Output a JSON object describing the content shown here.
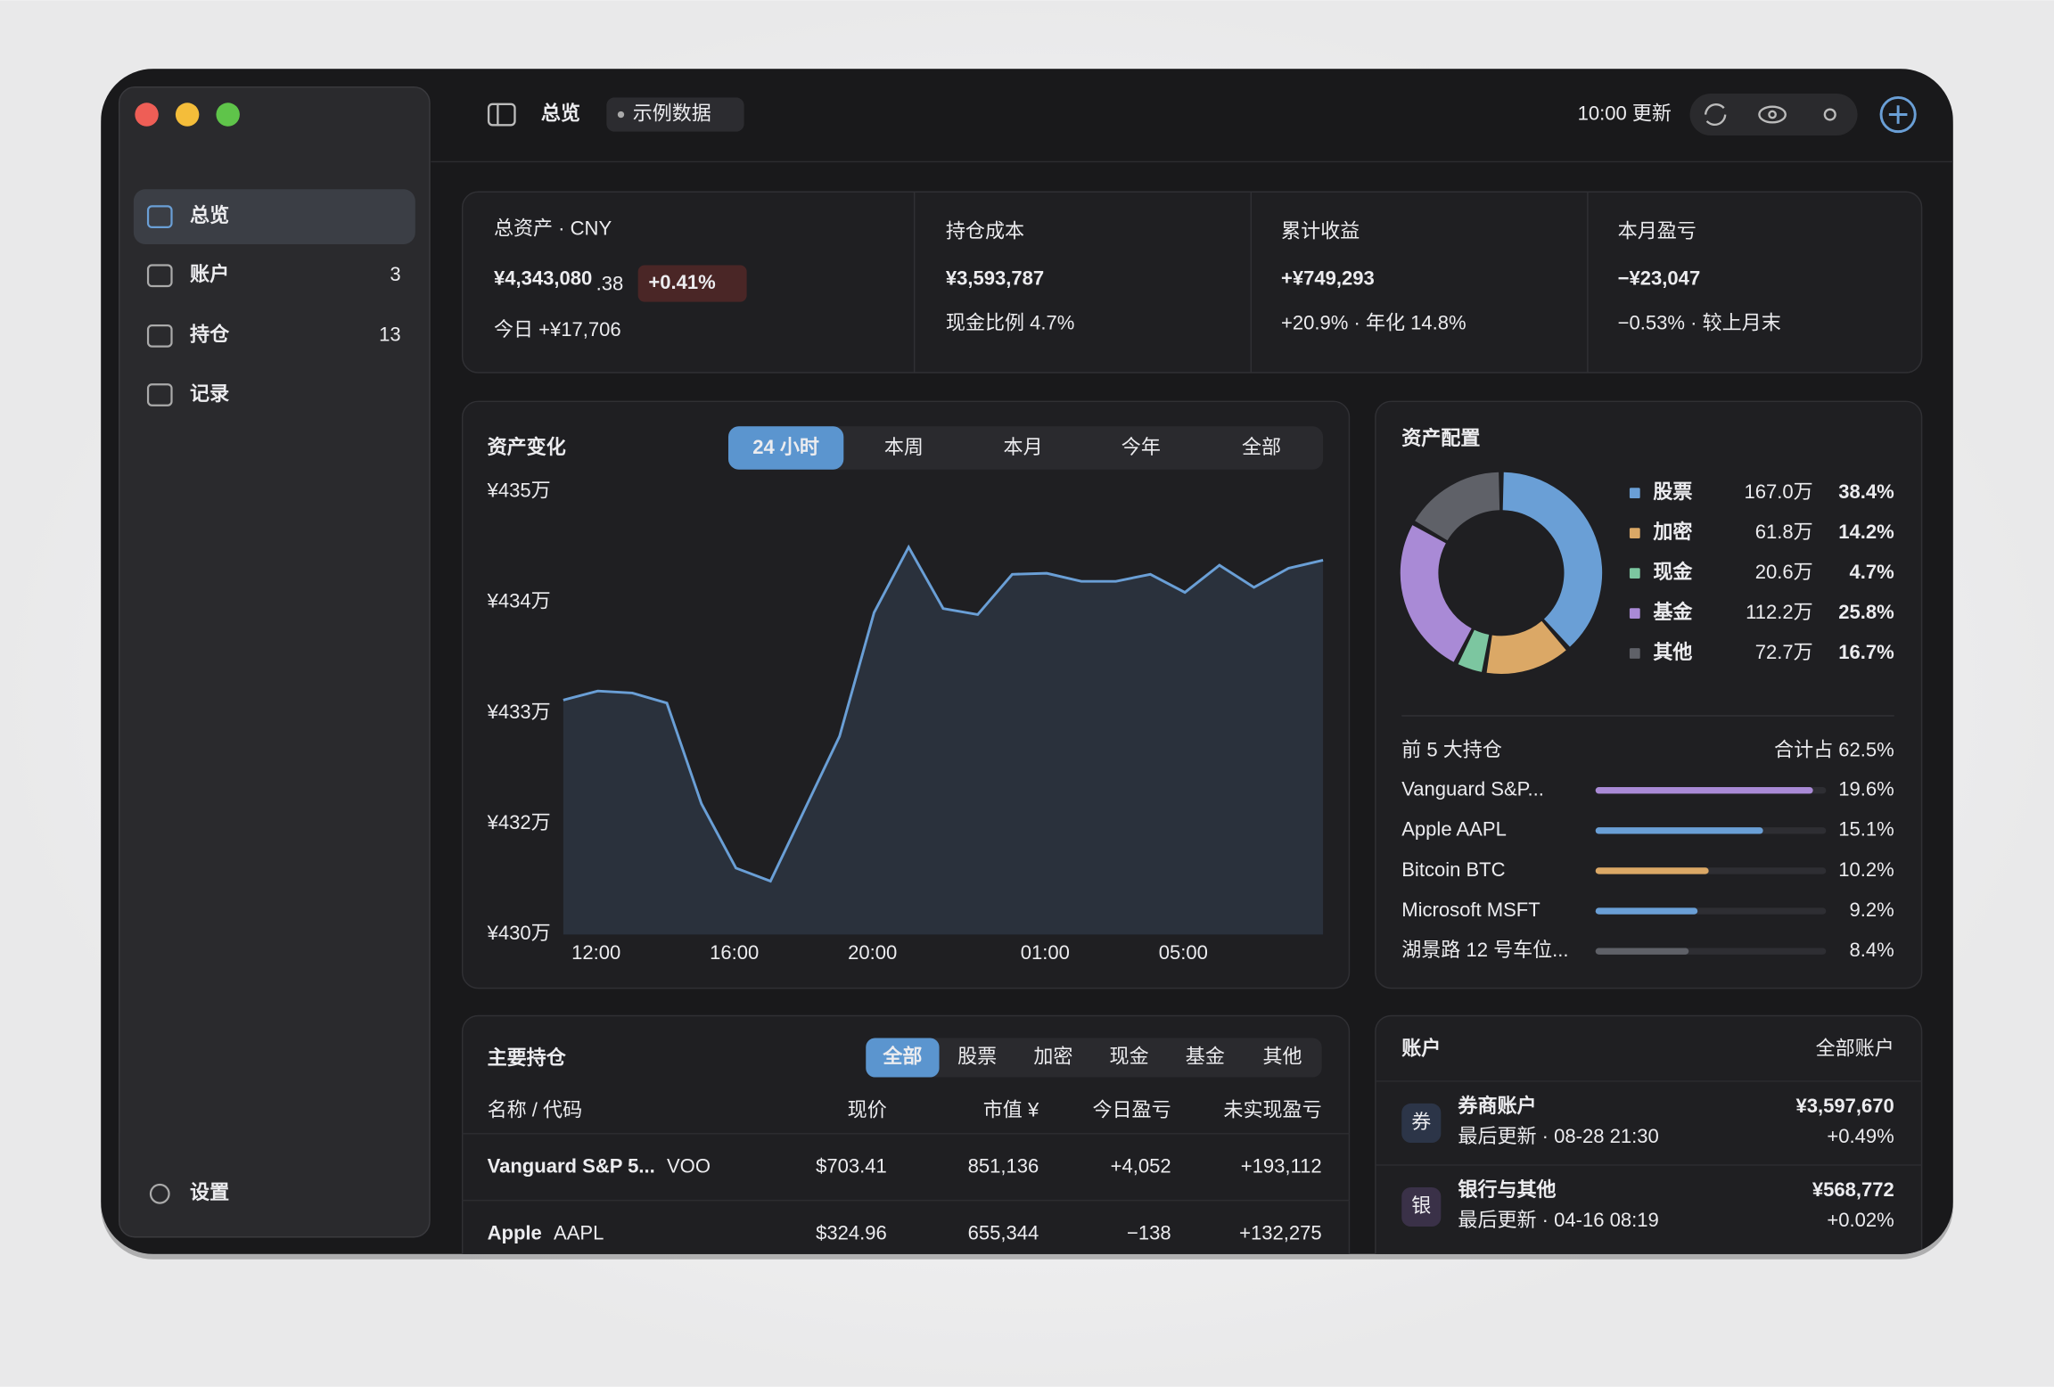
{
  "sidebar": {
    "nav": [
      {
        "label": "总览"
      },
      {
        "label": "账户",
        "count": 3
      },
      {
        "label": "持仓",
        "count": 13
      },
      {
        "label": "记录"
      }
    ],
    "settings": "设置"
  },
  "header": {
    "title": "总览",
    "badge": "示例数据",
    "updated": "10:00 更新"
  },
  "stats": [
    {
      "label": "总资产 · CNY",
      "value": "¥4,343,080",
      "decimals": ".38",
      "change": "+0.41%",
      "sub": "今日 +¥17,706"
    },
    {
      "label": "持仓成本",
      "value": "¥3,593,787",
      "sub": "现金比例 4.7%"
    },
    {
      "label": "累计收益",
      "value": "+¥749,293",
      "sub": "+20.9% · 年化 14.8%"
    },
    {
      "label": "本月盈亏",
      "value": "−¥23,047",
      "sub": "−0.53% · 较上月末"
    }
  ],
  "asset_chart": {
    "type": "line",
    "title": "资产变化",
    "ranges": [
      "24 小时",
      "本周",
      "本月",
      "今年",
      "全部"
    ],
    "categories": [
      null,
      "12:00",
      null,
      null,
      null,
      "16:00",
      null,
      null,
      null,
      "20:00",
      null,
      null,
      null,
      null,
      "01:00",
      null,
      null,
      null,
      "05:00",
      null,
      null,
      null,
      null
    ],
    "values": [
      432.78,
      432.87,
      432.85,
      432.75,
      431.75,
      431.11,
      430.98,
      431.7,
      432.42,
      433.65,
      434.3,
      433.69,
      433.63,
      434.03,
      434.04,
      433.96,
      433.96,
      434.03,
      433.85,
      434.12,
      433.9,
      434.09,
      434.17
    ],
    "color": "#6a9fd6",
    "ylim": [
      430.45,
      434.85
    ],
    "yticks": [
      {
        "value": 430.45,
        "label": "¥430万"
      },
      {
        "value": 431.55,
        "label": "¥432万"
      },
      {
        "value": 432.65,
        "label": "¥433万"
      },
      {
        "value": 433.75,
        "label": "¥434万"
      },
      {
        "value": 434.85,
        "label": "¥435万"
      }
    ]
  },
  "allocation": {
    "type": "pie",
    "title": "资产配置",
    "categories": [
      "股票",
      "加密",
      "现金",
      "基金",
      "其他"
    ],
    "amounts": [
      "167.0万",
      "61.8万",
      "20.6万",
      "112.2万",
      "72.7万"
    ],
    "values": [
      38.4,
      14.2,
      4.7,
      25.8,
      16.7
    ],
    "value_labels": [
      "38.4%",
      "14.2%",
      "4.7%",
      "25.8%",
      "16.7%"
    ],
    "colors": [
      "#6a9fd6",
      "#dba866",
      "#7cc6a0",
      "#a98ad6",
      "#5f6168"
    ]
  },
  "top_holdings": {
    "type": "bar",
    "title": "前 5 大持仓",
    "total": "合计占 62.5%",
    "categories": [
      "Vanguard S&P...",
      "Apple AAPL",
      "Bitcoin BTC",
      "Microsoft MSFT",
      "湖景路 12 号车位..."
    ],
    "values": [
      19.6,
      15.1,
      10.2,
      9.2,
      8.4
    ],
    "value_labels": [
      "19.6%",
      "15.1%",
      "10.2%",
      "9.2%",
      "8.4%"
    ],
    "colors": [
      "#a98ad6",
      "#6a9fd6",
      "#dba866",
      "#6a9fd6",
      "#5f6168"
    ]
  },
  "holdings": {
    "title": "主要持仓",
    "filters": [
      "全部",
      "股票",
      "加密",
      "现金",
      "基金",
      "其他"
    ],
    "columns": [
      "名称 / 代码",
      "现价",
      "市值 ¥",
      "今日盈亏",
      "未实现盈亏"
    ],
    "rows": [
      [
        "Vanguard S&P 5...",
        "VOO",
        "$703.41",
        "851,136",
        "+4,052",
        "+193,112"
      ],
      [
        "Apple",
        "AAPL",
        "$324.96",
        "655,344",
        "−138",
        "+132,275"
      ]
    ]
  },
  "accounts": {
    "title": "账户",
    "link": "全部账户",
    "rows": [
      {
        "icon": "券",
        "name": "券商账户",
        "updated": "最后更新 · 08-28 21:30",
        "value": "¥3,597,670",
        "change": "+0.49%"
      },
      {
        "icon": "银",
        "name": "银行与其他",
        "updated": "最后更新 · 04-16 08:19",
        "value": "¥568,772",
        "change": "+0.02%"
      }
    ]
  }
}
